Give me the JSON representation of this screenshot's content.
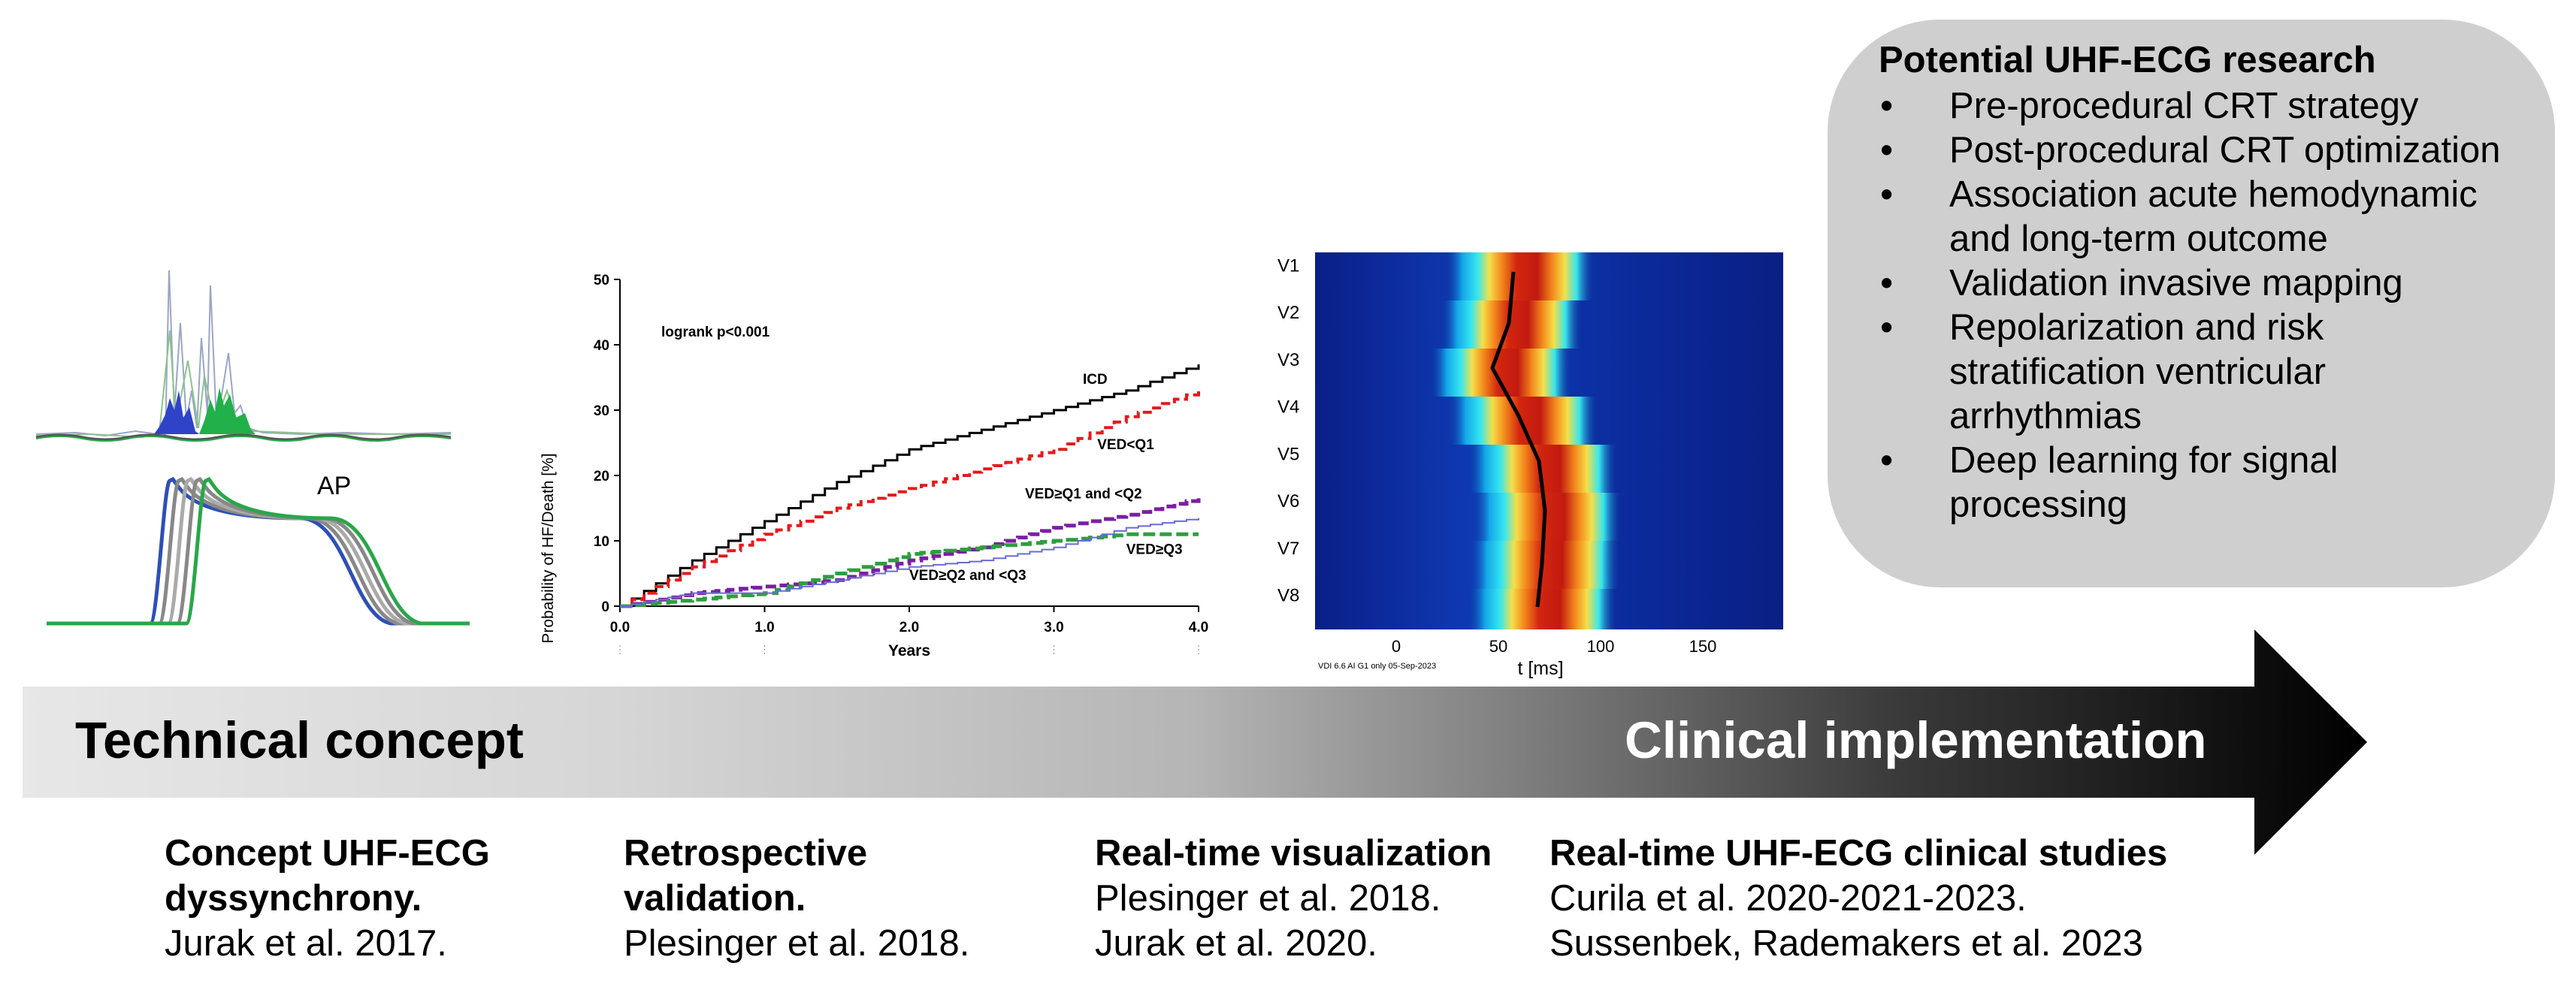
{
  "research": {
    "title": "Potential UHF-ECG research",
    "bullet": "•",
    "items": [
      "Pre-procedural CRT strategy",
      "Post-procedural CRT optimization",
      "Association acute hemodynamic and long-term outcome",
      "Validation invasive mapping",
      "Repolarization and risk stratification ventricular arrhythmias",
      "Deep learning for signal processing"
    ]
  },
  "arrow": {
    "left_label": "Technical concept",
    "right_label": "Clinical implementation"
  },
  "milestones": [
    {
      "title": "Concept UHF-ECG dyssynchrony.",
      "refs": [
        "Jurak et al. 2017."
      ]
    },
    {
      "title": "Retrospective validation.",
      "refs": [
        "Plesinger et al. 2018."
      ]
    },
    {
      "title": "Real-time visualization",
      "refs": [
        "Plesinger et al. 2018.",
        "Jurak et al. 2020."
      ]
    },
    {
      "title": "Real-time UHF-ECG clinical studies",
      "refs": [
        "Curila et al. 2020-2021-2023.",
        "Sussenbek, Rademakers et al. 2023"
      ]
    }
  ],
  "ap_panel": {
    "label": "AP"
  },
  "km_chart": {
    "ylabel": "Probability of HF/Death [%]",
    "xlabel": "Years",
    "annotation": "logrank p<0.001",
    "y_ticks": [
      "0",
      "10",
      "20",
      "30",
      "40",
      "50"
    ],
    "x_ticks": [
      "0.0",
      "1.0",
      "2.0",
      "3.0",
      "4.0"
    ],
    "series_labels": {
      "icd": "ICD",
      "q1": "VED<Q1",
      "q1q2": "VED≥Q1 and <Q2",
      "q3": "VED≥Q3",
      "q2q3": "VED≥Q2 and <Q3"
    },
    "colors": {
      "icd": "#000000",
      "q1": "#e31a1c",
      "q1q2": "#7b1fa2",
      "q3": "#2e9e3e",
      "q2q3": "#6a6ad8"
    }
  },
  "chart_data": {
    "type": "line",
    "xlabel": "Years",
    "ylabel": "Probability of HF/Death [%]",
    "xlim": [
      0,
      4
    ],
    "ylim": [
      0,
      50
    ],
    "series": [
      {
        "name": "ICD",
        "x": [
          0,
          0.5,
          1.0,
          1.5,
          2.0,
          2.5,
          3.0,
          3.5,
          4.0
        ],
        "values": [
          0,
          7,
          13,
          19,
          24,
          27,
          30,
          33,
          37
        ]
      },
      {
        "name": "VED<Q1",
        "x": [
          0,
          0.5,
          1.0,
          1.5,
          2.0,
          2.5,
          3.0,
          3.5,
          4.0
        ],
        "values": [
          0,
          6,
          11,
          15,
          18,
          21,
          24,
          29,
          33
        ]
      },
      {
        "name": "VED≥Q1 and <Q2",
        "x": [
          0,
          0.5,
          1.0,
          1.5,
          2.0,
          2.5,
          3.0,
          3.5,
          4.0
        ],
        "values": [
          0,
          2,
          3,
          4,
          7,
          9,
          12,
          14,
          16.5
        ]
      },
      {
        "name": "VED≥Q3",
        "x": [
          0,
          0.5,
          1.0,
          1.5,
          2.0,
          2.5,
          3.0,
          3.5,
          4.0
        ],
        "values": [
          0,
          1,
          2,
          5,
          8,
          9,
          10,
          11,
          11
        ]
      },
      {
        "name": "VED≥Q2 and <Q3",
        "x": [
          0,
          0.5,
          1.0,
          1.5,
          2.0,
          2.5,
          3.0,
          3.5,
          4.0
        ],
        "values": [
          0,
          2,
          2,
          4,
          6,
          7,
          9,
          12,
          13.5
        ]
      }
    ]
  },
  "heatmap": {
    "leads": [
      "V1",
      "V2",
      "V3",
      "V4",
      "V5",
      "V6",
      "V7",
      "V8"
    ],
    "x_ticks": [
      "0",
      "50",
      "100",
      "150"
    ],
    "xlabel": "t  [ms]",
    "footnote": "VDI 6.6 AI G1 only 05-Sep-2023"
  }
}
